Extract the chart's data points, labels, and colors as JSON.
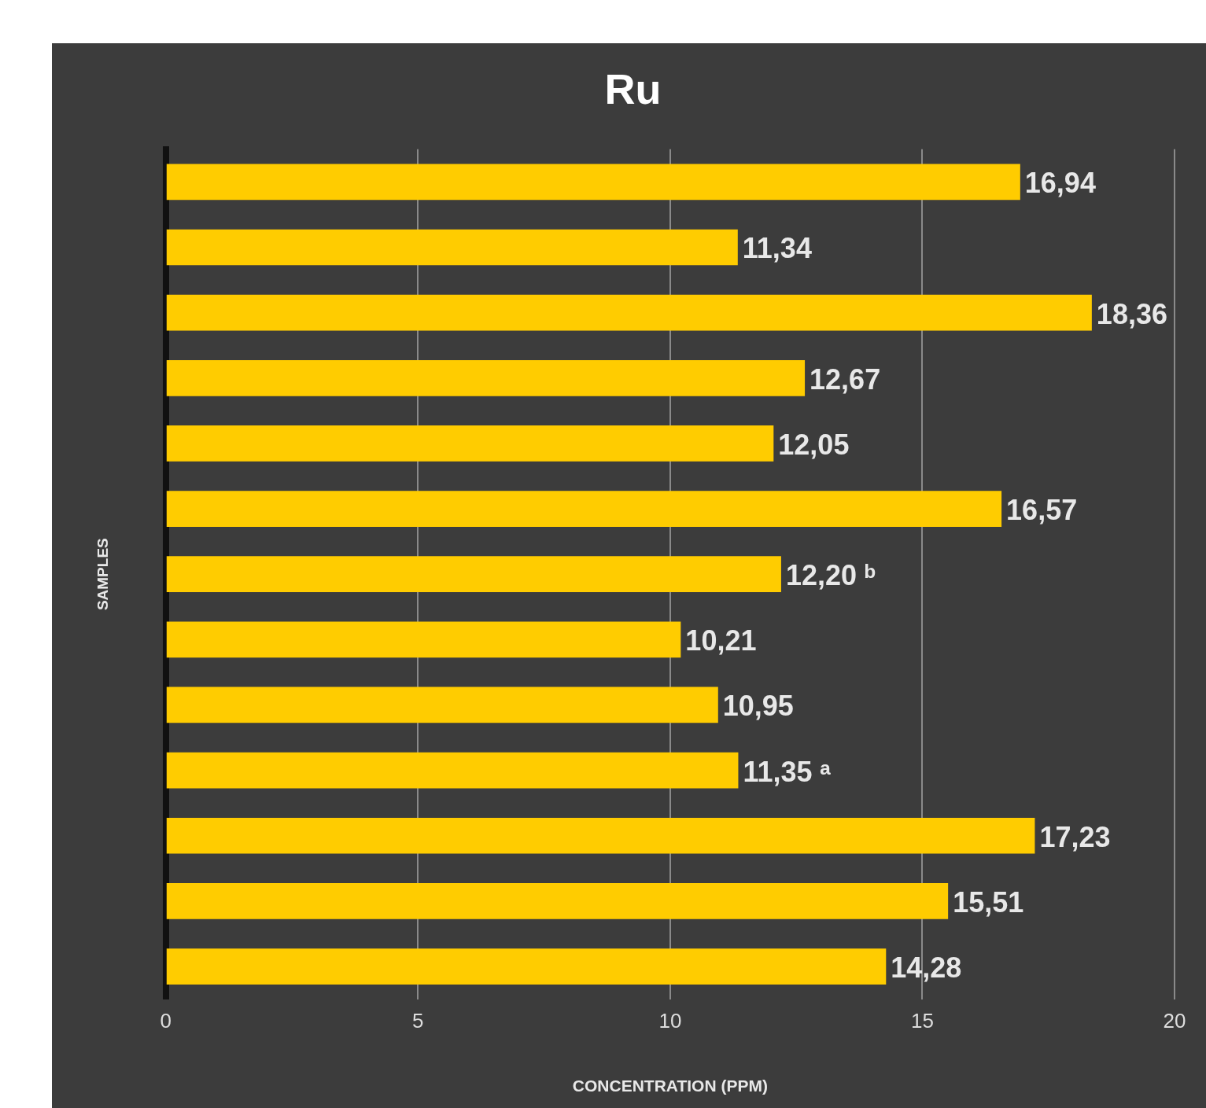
{
  "chart_data": {
    "type": "bar",
    "orientation": "horizontal",
    "title": "Ru",
    "xlabel": "CONCENTRATION (PPM)",
    "ylabel": "SAMPLES",
    "categories": [
      null,
      null,
      null,
      null,
      null,
      null,
      null,
      null,
      null,
      null,
      null,
      null,
      null
    ],
    "values": [
      16.94,
      11.34,
      18.36,
      12.67,
      12.05,
      16.57,
      12.2,
      10.21,
      10.95,
      11.35,
      17.23,
      15.51,
      14.28
    ],
    "value_labels": [
      "16,94",
      "11,34",
      "18,36",
      "12,67",
      "12,05",
      "16,57",
      "12,20 ᵇ",
      "10,21",
      "10,95",
      "11,35 ᵃ",
      "17,23",
      "15,51",
      "14,28"
    ],
    "color": "#ffcc00",
    "xlim": [
      0,
      20
    ],
    "xticks": [
      0,
      5,
      10,
      15,
      20
    ],
    "grid": "x",
    "tick_labels": "x",
    "legend": false
  }
}
